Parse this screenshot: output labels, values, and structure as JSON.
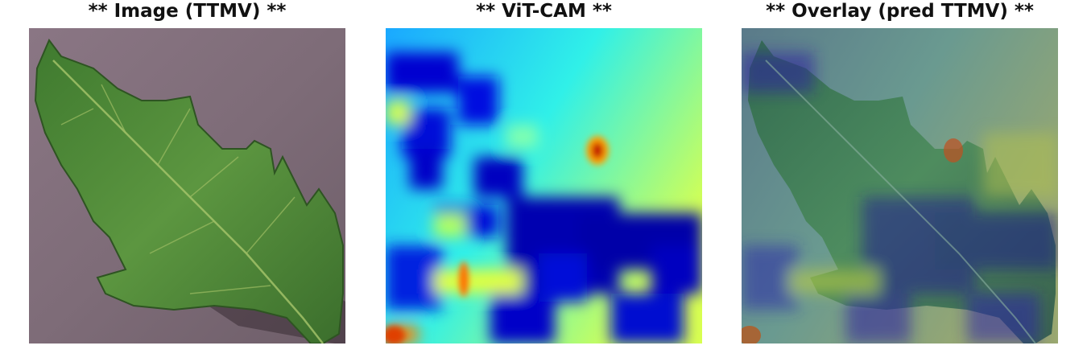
{
  "panels": [
    {
      "title": "** Image (TTMV) **"
    },
    {
      "title": "** ViT-CAM **"
    },
    {
      "title": "** Overlay (pred TTMV) **"
    }
  ],
  "colors": {
    "background_surface": "#7f6d79",
    "leaf_green": "#4f8a3c",
    "heatmap_low": "#0000c8",
    "heatmap_mid": "#20e6ff",
    "heatmap_high": "#e8ff40",
    "heatmap_peak": "#c00000"
  },
  "icons": []
}
